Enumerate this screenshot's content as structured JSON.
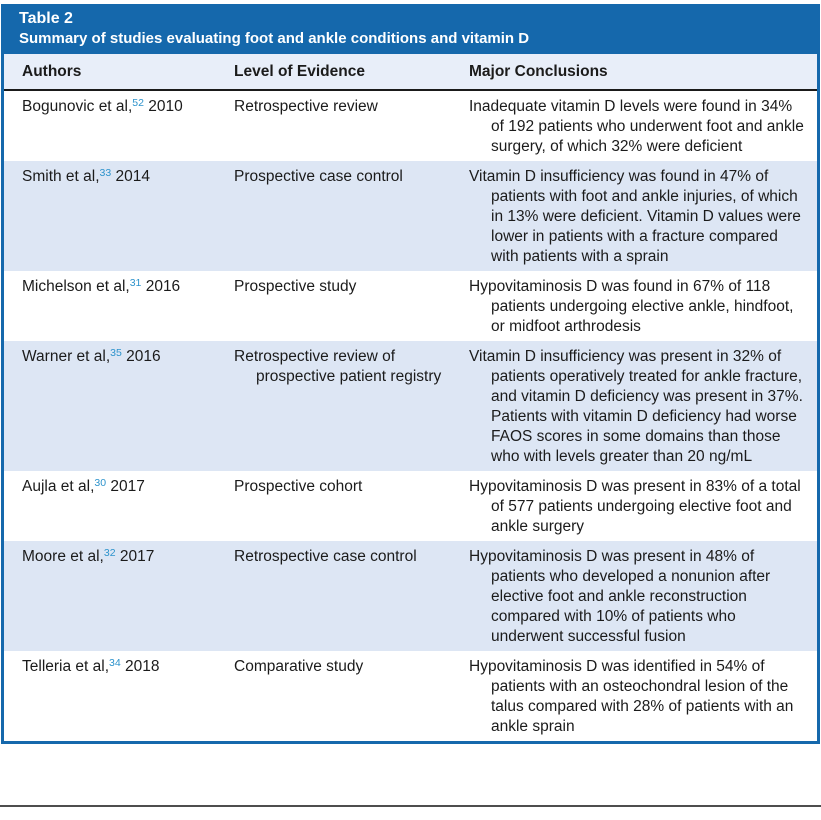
{
  "colors": {
    "accent_blue": "#1568ac",
    "alt_row_blue": "#dde6f4",
    "header_row_blue": "#e8eef9",
    "citation_blue": "#2d93cc"
  },
  "table": {
    "title": "Table 2",
    "subtitle": "Summary of studies evaluating foot and ankle conditions and vitamin D",
    "columns": [
      "Authors",
      "Level of Evidence",
      "Major Conclusions"
    ],
    "rows": [
      {
        "author": "Bogunovic et al,",
        "ref": "52",
        "year": "2010",
        "evidence": "Retrospective review",
        "conclusion": "Inadequate vitamin D levels were found in 34% of 192 patients who underwent foot and ankle surgery, of which 32% were deficient"
      },
      {
        "author": "Smith et al,",
        "ref": "33",
        "year": "2014",
        "evidence": "Prospective case control",
        "conclusion": "Vitamin D insufficiency was found in 47% of patients with foot and ankle injuries, of which in 13% were deficient. Vitamin D values were lower in patients with a fracture compared with patients with a sprain"
      },
      {
        "author": "Michelson et al,",
        "ref": "31",
        "year": "2016",
        "evidence": "Prospective study",
        "conclusion": "Hypovitaminosis D was found in 67% of 118 patients undergoing elective ankle, hindfoot, or midfoot arthrodesis"
      },
      {
        "author": "Warner et al,",
        "ref": "35",
        "year": "2016",
        "evidence": "Retrospective review of prospective patient registry",
        "conclusion": "Vitamin D insufficiency was present in 32% of patients operatively treated for ankle fracture, and vitamin D deficiency was present in 37%. Patients with vitamin D deficiency had worse FAOS scores in some domains than those who with levels greater than 20 ng/mL"
      },
      {
        "author": "Aujla et al,",
        "ref": "30",
        "year": "2017",
        "evidence": "Prospective cohort",
        "conclusion": "Hypovitaminosis D was present in 83% of a total of 577 patients undergoing elective foot and ankle surgery"
      },
      {
        "author": "Moore et al,",
        "ref": "32",
        "year": "2017",
        "evidence": "Retrospective case control",
        "conclusion": "Hypovitaminosis D was present in 48% of patients who developed a nonunion after elective foot and ankle reconstruction compared with 10% of patients who underwent successful fusion"
      },
      {
        "author": "Telleria et al,",
        "ref": "34",
        "year": "2018",
        "evidence": "Comparative study",
        "conclusion": "Hypovitaminosis D was identified in 54% of patients with an osteochondral lesion of the talus compared with 28% of patients with an ankle sprain"
      }
    ]
  }
}
